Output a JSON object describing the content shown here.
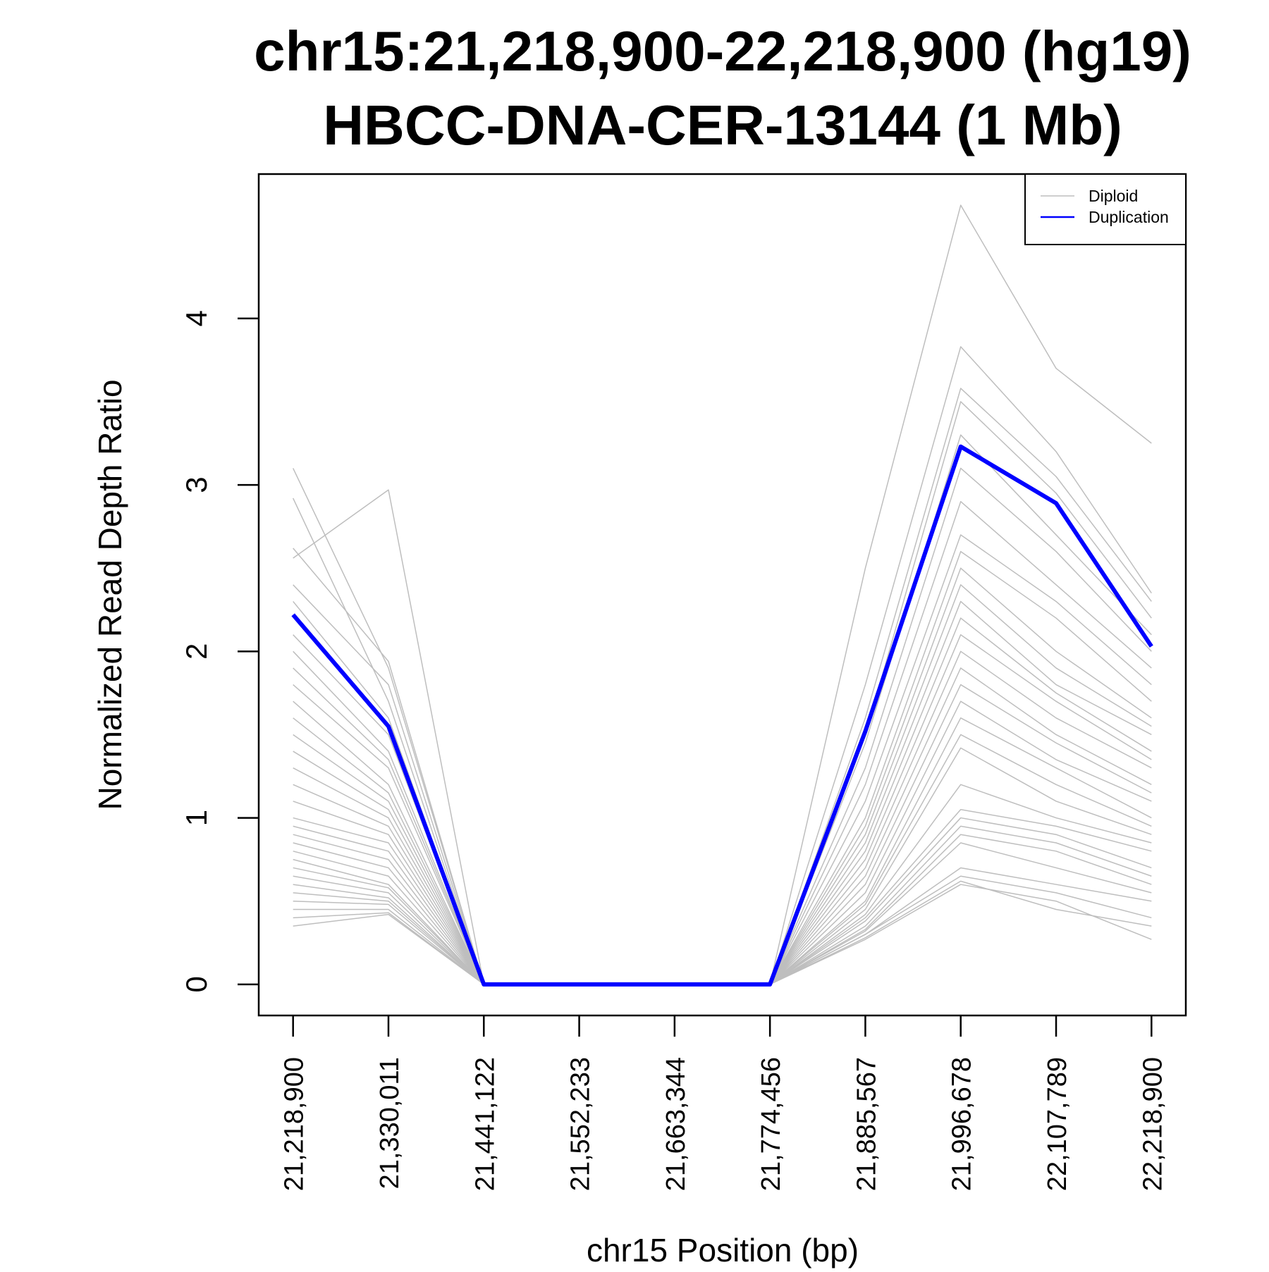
{
  "chart_data": {
    "type": "line",
    "title": "chr15:21,218,900-22,218,900 (hg19)",
    "subtitle": "HBCC-DNA-CER-13144 (1 Mb)",
    "x_label": "chr15 Position (bp)",
    "y_label": "Normalized Read Depth Ratio",
    "x": [
      21218900,
      21330011,
      21441122,
      21552233,
      21663344,
      21774456,
      21885567,
      21996678,
      22107789,
      22218900
    ],
    "xlim": [
      21178900,
      22258900
    ],
    "xticks": [
      {
        "value": 21218900,
        "label": "21,218,900"
      },
      {
        "value": 21330011,
        "label": "21,330,011"
      },
      {
        "value": 21441122,
        "label": "21,441,122"
      },
      {
        "value": 21552233,
        "label": "21,552,233"
      },
      {
        "value": 21663344,
        "label": "21,663,344"
      },
      {
        "value": 21774456,
        "label": "21,774,456"
      },
      {
        "value": 21885567,
        "label": "21,885,567"
      },
      {
        "value": 21996678,
        "label": "21,996,678"
      },
      {
        "value": 22107789,
        "label": "22,107,789"
      },
      {
        "value": 22218900,
        "label": "22,218,900"
      }
    ],
    "ylim": [
      -0.187,
      4.867
    ],
    "yticks": [
      0,
      1,
      2,
      3,
      4
    ],
    "legend": "topright",
    "series": [
      {
        "name": "Diploid",
        "color": "#bebebe",
        "width": 1.5,
        "values": [
          3.1,
          1.9,
          0,
          0,
          0,
          0,
          2.5,
          4.68,
          3.7,
          3.25
        ]
      },
      {
        "name": "Diploid",
        "color": "#bebebe",
        "width": 1.5,
        "values": [
          2.56,
          2.97,
          0,
          0,
          0,
          0,
          1.8,
          3.83,
          3.2,
          2.35
        ]
      },
      {
        "name": "Diploid",
        "color": "#bebebe",
        "width": 1.5,
        "values": [
          2.92,
          1.7,
          0,
          0,
          0,
          0,
          1.6,
          3.58,
          3.05,
          2.3
        ]
      },
      {
        "name": "Diploid",
        "color": "#bebebe",
        "width": 1.5,
        "values": [
          2.62,
          1.94,
          0,
          0,
          0,
          0,
          1.5,
          3.5,
          2.95,
          2.2
        ]
      },
      {
        "name": "Diploid",
        "color": "#bebebe",
        "width": 1.5,
        "values": [
          2.4,
          1.8,
          0,
          0,
          0,
          0,
          1.45,
          3.3,
          2.7,
          2.1
        ]
      },
      {
        "name": "Diploid",
        "color": "#bebebe",
        "width": 1.5,
        "values": [
          2.3,
          1.6,
          0,
          0,
          0,
          0,
          1.3,
          3.1,
          2.6,
          2.0
        ]
      },
      {
        "name": "Diploid",
        "color": "#bebebe",
        "width": 1.5,
        "values": [
          2.1,
          1.5,
          0,
          0,
          0,
          0,
          1.2,
          2.9,
          2.4,
          1.9
        ]
      },
      {
        "name": "Diploid",
        "color": "#bebebe",
        "width": 1.5,
        "values": [
          2.0,
          1.4,
          0,
          0,
          0,
          0,
          1.1,
          2.7,
          2.3,
          1.8
        ]
      },
      {
        "name": "Diploid",
        "color": "#bebebe",
        "width": 1.5,
        "values": [
          1.9,
          1.35,
          0,
          0,
          0,
          0,
          1.0,
          2.6,
          2.2,
          1.7
        ]
      },
      {
        "name": "Diploid",
        "color": "#bebebe",
        "width": 1.5,
        "values": [
          1.8,
          1.3,
          0,
          0,
          0,
          0,
          0.95,
          2.5,
          2.0,
          1.6
        ]
      },
      {
        "name": "Diploid",
        "color": "#bebebe",
        "width": 1.5,
        "values": [
          1.7,
          1.2,
          0,
          0,
          0,
          0,
          0.9,
          2.4,
          1.9,
          1.55
        ]
      },
      {
        "name": "Diploid",
        "color": "#bebebe",
        "width": 1.5,
        "values": [
          1.6,
          1.15,
          0,
          0,
          0,
          0,
          0.85,
          2.3,
          1.8,
          1.5
        ]
      },
      {
        "name": "Diploid",
        "color": "#bebebe",
        "width": 1.5,
        "values": [
          1.5,
          1.1,
          0,
          0,
          0,
          0,
          0.8,
          2.2,
          1.75,
          1.4
        ]
      },
      {
        "name": "Diploid",
        "color": "#bebebe",
        "width": 1.5,
        "values": [
          1.4,
          1.05,
          0,
          0,
          0,
          0,
          0.75,
          2.1,
          1.7,
          1.35
        ]
      },
      {
        "name": "Diploid",
        "color": "#bebebe",
        "width": 1.5,
        "values": [
          1.3,
          1.0,
          0,
          0,
          0,
          0,
          0.7,
          2.0,
          1.6,
          1.3
        ]
      },
      {
        "name": "Diploid",
        "color": "#bebebe",
        "width": 1.5,
        "values": [
          1.2,
          0.95,
          0,
          0,
          0,
          0,
          0.65,
          1.9,
          1.5,
          1.2
        ]
      },
      {
        "name": "Diploid",
        "color": "#bebebe",
        "width": 1.5,
        "values": [
          1.1,
          0.9,
          0,
          0,
          0,
          0,
          0.6,
          1.8,
          1.45,
          1.15
        ]
      },
      {
        "name": "Diploid",
        "color": "#bebebe",
        "width": 1.5,
        "values": [
          1.0,
          0.85,
          0,
          0,
          0,
          0,
          0.55,
          1.7,
          1.35,
          1.1
        ]
      },
      {
        "name": "Diploid",
        "color": "#bebebe",
        "width": 1.5,
        "values": [
          0.95,
          0.8,
          0,
          0,
          0,
          0,
          0.5,
          1.6,
          1.3,
          1.0
        ]
      },
      {
        "name": "Diploid",
        "color": "#bebebe",
        "width": 1.5,
        "values": [
          0.9,
          0.75,
          0,
          0,
          0,
          0,
          0.48,
          1.5,
          1.2,
          0.95
        ]
      },
      {
        "name": "Diploid",
        "color": "#bebebe",
        "width": 1.5,
        "values": [
          0.85,
          0.7,
          0,
          0,
          0,
          0,
          0.45,
          1.42,
          1.1,
          0.9
        ]
      },
      {
        "name": "Diploid",
        "color": "#bebebe",
        "width": 1.5,
        "values": [
          0.8,
          0.65,
          0,
          0,
          0,
          0,
          0.42,
          1.2,
          1.0,
          0.85
        ]
      },
      {
        "name": "Diploid",
        "color": "#bebebe",
        "width": 1.5,
        "values": [
          0.75,
          0.6,
          0,
          0,
          0,
          0,
          0.4,
          1.05,
          0.95,
          0.8
        ]
      },
      {
        "name": "Diploid",
        "color": "#bebebe",
        "width": 1.5,
        "values": [
          0.7,
          0.58,
          0,
          0,
          0,
          0,
          0.38,
          1.0,
          0.9,
          0.7
        ]
      },
      {
        "name": "Diploid",
        "color": "#bebebe",
        "width": 1.5,
        "values": [
          0.65,
          0.55,
          0,
          0,
          0,
          0,
          0.35,
          0.95,
          0.85,
          0.65
        ]
      },
      {
        "name": "Diploid",
        "color": "#bebebe",
        "width": 1.5,
        "values": [
          0.6,
          0.52,
          0,
          0,
          0,
          0,
          0.33,
          0.9,
          0.8,
          0.6
        ]
      },
      {
        "name": "Diploid",
        "color": "#bebebe",
        "width": 1.5,
        "values": [
          0.55,
          0.5,
          0,
          0,
          0,
          0,
          0.32,
          0.85,
          0.7,
          0.55
        ]
      },
      {
        "name": "Diploid",
        "color": "#bebebe",
        "width": 1.5,
        "values": [
          0.5,
          0.48,
          0,
          0,
          0,
          0,
          0.3,
          0.7,
          0.6,
          0.5
        ]
      },
      {
        "name": "Diploid",
        "color": "#bebebe",
        "width": 1.5,
        "values": [
          0.45,
          0.45,
          0,
          0,
          0,
          0,
          0.3,
          0.65,
          0.55,
          0.4
        ]
      },
      {
        "name": "Diploid",
        "color": "#bebebe",
        "width": 1.5,
        "values": [
          0.4,
          0.43,
          0,
          0,
          0,
          0,
          0.28,
          0.62,
          0.45,
          0.35
        ]
      },
      {
        "name": "Diploid",
        "color": "#bebebe",
        "width": 1.5,
        "values": [
          0.35,
          0.42,
          0,
          0,
          0,
          0,
          0.27,
          0.6,
          0.5,
          0.27
        ]
      },
      {
        "name": "Duplication",
        "color": "#0000ff",
        "width": 6,
        "values": [
          2.22,
          1.55,
          0,
          0,
          0,
          0,
          1.52,
          3.23,
          2.89,
          2.03
        ]
      }
    ]
  }
}
